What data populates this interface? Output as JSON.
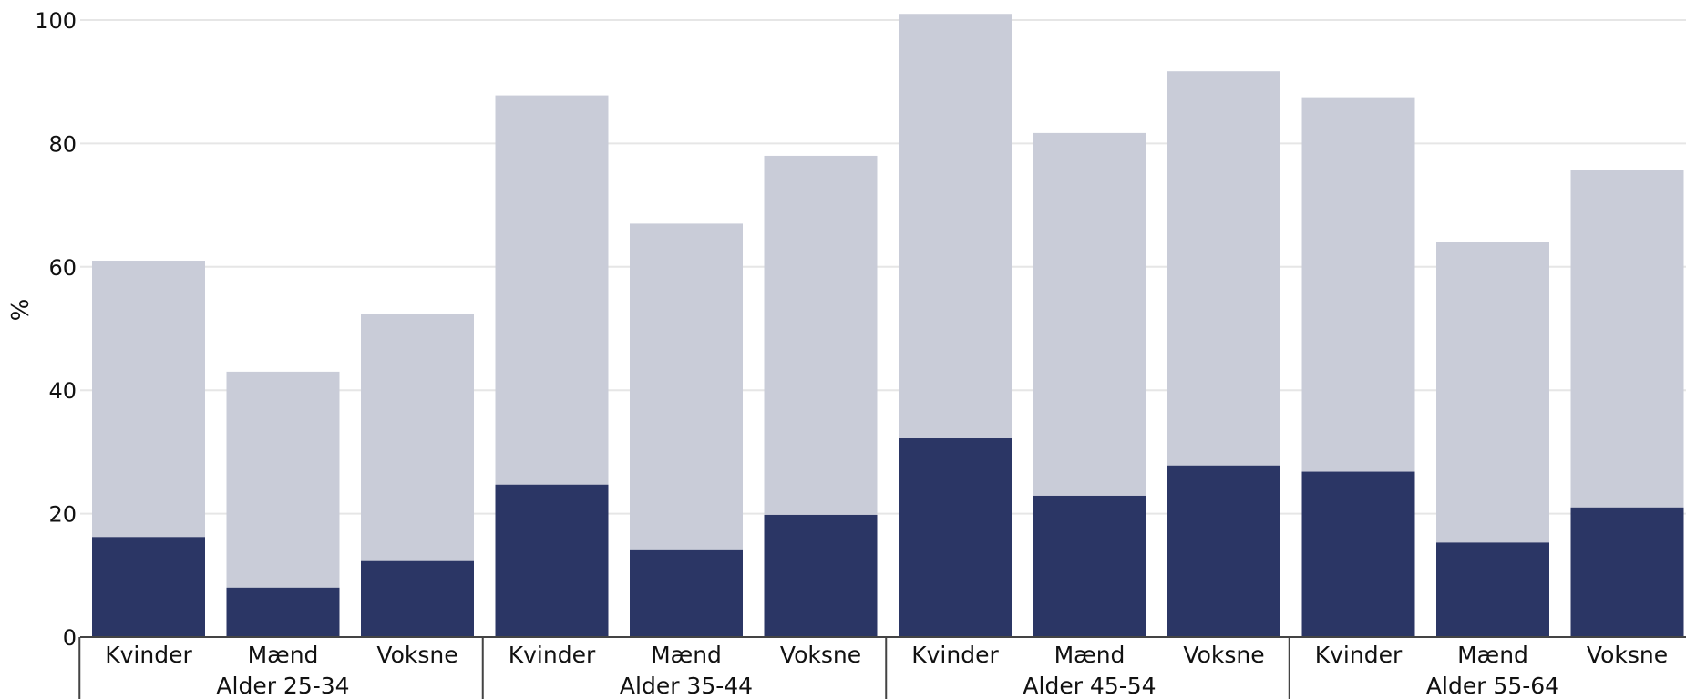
{
  "chart_data": {
    "type": "bar",
    "stacked": false,
    "overlapping": true,
    "ylabel": "%",
    "xlabel": "",
    "ylim": [
      0,
      100
    ],
    "yticks": [
      0,
      20,
      40,
      60,
      80,
      100
    ],
    "grid": true,
    "legend": "none",
    "groups": [
      {
        "label": "Alder 25-34",
        "categories": [
          "Kvinder",
          "Mænd",
          "Voksne"
        ]
      },
      {
        "label": "Alder 35-44",
        "categories": [
          "Kvinder",
          "Mænd",
          "Voksne"
        ]
      },
      {
        "label": "Alder 45-54",
        "categories": [
          "Kvinder",
          "Mænd",
          "Voksne"
        ]
      },
      {
        "label": "Alder 55-64",
        "categories": [
          "Kvinder",
          "Mænd",
          "Voksne"
        ]
      }
    ],
    "series": [
      {
        "color": "#c9ccd8",
        "values": [
          61,
          43,
          52.3,
          87.8,
          67,
          78,
          101,
          81.7,
          91.7,
          87.5,
          64,
          75.7
        ]
      },
      {
        "color": "#2b3665",
        "values": [
          16.2,
          8,
          12.3,
          24.7,
          14.2,
          19.8,
          32.2,
          22.9,
          27.8,
          26.8,
          15.3,
          21
        ]
      }
    ]
  }
}
